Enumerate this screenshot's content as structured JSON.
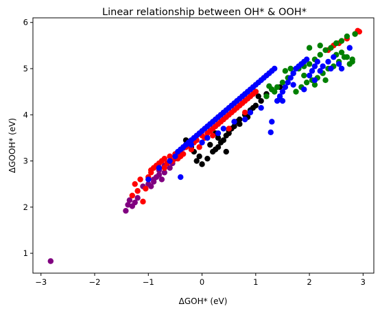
{
  "chart_data": {
    "type": "scatter",
    "title": "Linear relationship between OH* & OOH*",
    "xlabel": "ΔGOH* (eV)",
    "ylabel": "ΔGOOH* (eV)",
    "xlim": [
      -3.15,
      3.2
    ],
    "ylim": [
      0.57,
      6.1
    ],
    "xticks": [
      -3,
      -2,
      -1,
      0,
      1,
      2,
      3
    ],
    "yticks": [
      1,
      2,
      3,
      4,
      5,
      6
    ],
    "grid": false,
    "legend": "none",
    "series": [
      {
        "color": "#800080",
        "x": [
          -2.82,
          -1.42,
          -1.38,
          -1.35,
          -1.3,
          -1.25,
          -1.2,
          -1.1,
          -0.95,
          -0.9,
          -0.85,
          -0.8,
          -0.75,
          -0.7,
          -0.6,
          -0.55,
          -0.5,
          -0.45,
          -0.4,
          -0.35,
          -0.3,
          -0.25,
          -0.7,
          -0.8,
          -0.9,
          -1.0
        ],
        "y": [
          0.83,
          1.92,
          2.05,
          2.15,
          2.02,
          2.1,
          2.2,
          2.45,
          2.45,
          2.55,
          2.65,
          2.7,
          2.6,
          2.75,
          2.85,
          2.95,
          3.05,
          3.15,
          3.2,
          3.28,
          3.35,
          3.4,
          2.9,
          2.8,
          2.6,
          2.5
        ]
      },
      {
        "color": "#000000",
        "x": [
          0.0,
          0.1,
          0.2,
          0.25,
          0.3,
          0.35,
          0.4,
          0.45,
          0.5,
          0.55,
          0.6,
          0.65,
          0.7,
          0.8,
          0.9,
          1.0,
          1.1,
          1.2,
          1.3,
          -0.05,
          -0.1,
          -0.15,
          -0.2,
          -0.3,
          0.15,
          0.3,
          0.5,
          0.7,
          1.0,
          1.05,
          0.95,
          0.85,
          1.45,
          0.45,
          0.25
        ],
        "y": [
          2.93,
          3.05,
          3.2,
          3.25,
          3.3,
          3.4,
          3.45,
          3.55,
          3.6,
          3.7,
          3.75,
          3.85,
          3.9,
          4.0,
          4.1,
          4.2,
          4.3,
          4.45,
          4.55,
          3.1,
          3.0,
          3.2,
          3.3,
          3.45,
          3.35,
          3.5,
          3.65,
          3.8,
          4.5,
          4.4,
          4.15,
          3.95,
          4.6,
          3.2,
          3.6
        ]
      },
      {
        "color": "#ff0000",
        "x": [
          -1.3,
          -1.25,
          -1.2,
          -1.15,
          -1.1,
          -1.05,
          -1.0,
          -0.95,
          -0.9,
          -0.85,
          -0.8,
          -0.75,
          -0.7,
          -0.65,
          -0.6,
          -0.55,
          -0.5,
          -0.45,
          -0.4,
          -0.35,
          -0.3,
          -0.25,
          -0.2,
          -0.15,
          -0.1,
          -0.05,
          0.0,
          0.05,
          0.1,
          0.15,
          0.2,
          0.25,
          0.3,
          0.35,
          0.4,
          0.45,
          0.5,
          0.55,
          0.6,
          0.65,
          0.7,
          0.75,
          0.8,
          0.85,
          0.9,
          0.95,
          1.0,
          2.35,
          2.45,
          2.55,
          2.7,
          2.85,
          2.9,
          2.93,
          -0.95,
          -0.7,
          -0.4,
          0.2,
          0.5,
          0.8
        ],
        "y": [
          2.25,
          2.5,
          2.35,
          2.6,
          2.12,
          2.4,
          2.65,
          2.8,
          2.85,
          2.9,
          2.95,
          3.0,
          3.05,
          2.95,
          3.1,
          3.0,
          3.15,
          3.05,
          3.2,
          3.15,
          3.3,
          3.35,
          3.25,
          3.4,
          3.45,
          3.3,
          3.55,
          3.5,
          3.6,
          3.65,
          3.7,
          3.75,
          3.8,
          3.85,
          3.9,
          3.95,
          4.0,
          4.05,
          4.1,
          4.15,
          4.2,
          4.25,
          4.3,
          4.35,
          4.4,
          4.45,
          4.5,
          5.4,
          5.5,
          5.55,
          5.65,
          5.75,
          5.82,
          5.8,
          2.75,
          2.85,
          3.1,
          3.55,
          3.7,
          4.05
        ]
      },
      {
        "color": "#008000",
        "x": [
          1.2,
          1.3,
          1.4,
          1.5,
          1.6,
          1.7,
          1.8,
          1.9,
          2.0,
          2.1,
          2.2,
          2.3,
          2.4,
          2.5,
          2.6,
          2.7,
          2.75,
          2.8,
          2.85,
          1.75,
          1.85,
          1.95,
          2.05,
          2.15,
          2.25,
          2.35,
          2.45,
          2.55,
          2.65,
          1.55,
          1.65,
          1.45,
          2.0,
          2.2,
          2.7,
          2.8,
          1.9,
          2.1,
          2.3,
          1.35,
          1.25,
          2.6,
          2.5
        ],
        "y": [
          4.4,
          4.55,
          4.6,
          4.7,
          4.8,
          4.9,
          5.0,
          5.05,
          5.1,
          5.2,
          5.3,
          5.4,
          5.45,
          5.55,
          5.6,
          5.7,
          5.1,
          5.2,
          5.75,
          4.5,
          4.6,
          4.7,
          4.75,
          4.8,
          4.9,
          5.0,
          5.05,
          5.15,
          5.25,
          4.95,
          5.0,
          4.35,
          5.45,
          5.5,
          5.25,
          5.15,
          4.85,
          4.65,
          4.75,
          4.5,
          4.62,
          5.35,
          5.3
        ]
      },
      {
        "color": "#0000ff",
        "x": [
          -1.0,
          -0.8,
          -0.6,
          -0.5,
          -0.45,
          -0.4,
          -0.35,
          -0.3,
          -0.25,
          -0.2,
          -0.15,
          -0.1,
          -0.05,
          0.0,
          0.05,
          0.1,
          0.15,
          0.2,
          0.25,
          0.3,
          0.35,
          0.4,
          0.45,
          0.5,
          0.55,
          0.6,
          0.65,
          0.7,
          0.75,
          0.8,
          0.85,
          0.9,
          0.95,
          1.0,
          1.05,
          1.1,
          1.15,
          1.2,
          1.25,
          1.3,
          1.35,
          1.4,
          1.45,
          1.5,
          1.55,
          1.6,
          1.65,
          1.7,
          1.75,
          1.8,
          1.85,
          1.9,
          1.95,
          2.0,
          2.05,
          2.1,
          2.15,
          2.2,
          2.25,
          2.35,
          2.45,
          2.55,
          2.75,
          -0.4,
          -0.2,
          0.1,
          0.3,
          0.6,
          1.28,
          1.3,
          0.8,
          0.4,
          0.0,
          0.9,
          1.1,
          1.5,
          1.7,
          1.9,
          2.1,
          2.4,
          2.6
        ],
        "y": [
          2.6,
          2.85,
          3.0,
          3.1,
          3.2,
          3.25,
          3.3,
          3.35,
          3.4,
          3.45,
          3.5,
          3.55,
          3.6,
          3.65,
          3.7,
          3.75,
          3.8,
          3.85,
          3.9,
          3.95,
          4.0,
          4.05,
          4.1,
          4.15,
          4.2,
          4.25,
          4.3,
          4.35,
          4.4,
          4.45,
          4.5,
          4.55,
          4.6,
          4.65,
          4.7,
          4.75,
          4.8,
          4.85,
          4.9,
          4.95,
          5.0,
          4.3,
          4.4,
          4.5,
          4.6,
          4.7,
          4.8,
          4.9,
          5.0,
          5.05,
          5.1,
          5.15,
          5.2,
          4.85,
          4.95,
          5.05,
          5.15,
          4.95,
          5.05,
          5.15,
          5.25,
          5.1,
          5.45,
          2.65,
          3.35,
          3.5,
          3.6,
          3.85,
          3.62,
          3.85,
          3.9,
          3.7,
          3.4,
          4.05,
          4.15,
          4.3,
          4.65,
          4.55,
          4.75,
          5.0,
          5.0
        ]
      }
    ]
  }
}
